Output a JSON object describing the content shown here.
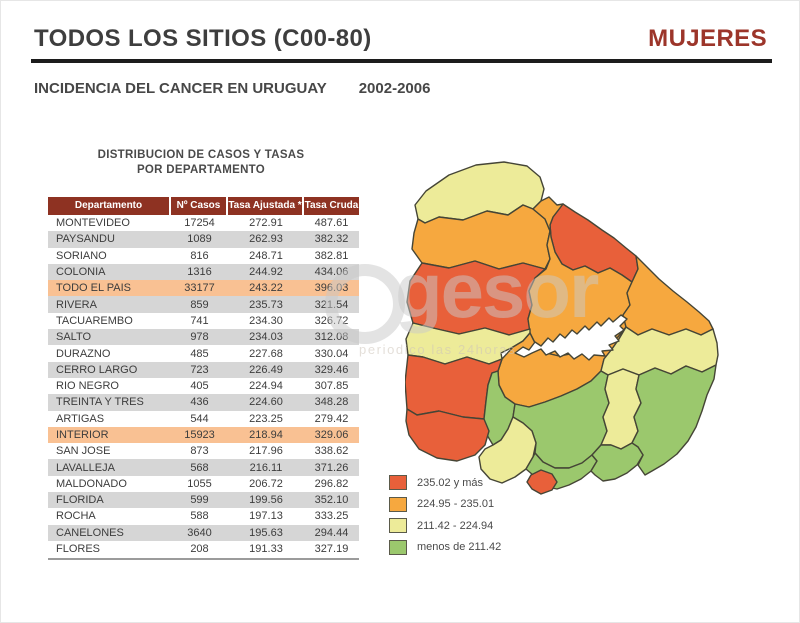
{
  "header": {
    "title": "TODOS LOS SITIOS (C00-80)",
    "sex_label": "MUJERES",
    "subtitle": "INCIDENCIA DEL CANCER EN URUGUAY",
    "period": "2002-2006"
  },
  "table": {
    "title_line1": "DISTRIBUCION DE CASOS Y TASAS",
    "title_line2": "POR DEPARTAMENTO",
    "columns": [
      "Departamento",
      "Nº Casos",
      "Tasa Ajustada *",
      "Tasa Cruda"
    ],
    "rows": [
      {
        "departamento": "MONTEVIDEO",
        "casos": "17254",
        "tasa_ajustada": "272.91",
        "tasa_cruda": "487.61",
        "highlight": false
      },
      {
        "departamento": "PAYSANDU",
        "casos": "1089",
        "tasa_ajustada": "262.93",
        "tasa_cruda": "382.32",
        "highlight": false
      },
      {
        "departamento": "SORIANO",
        "casos": "816",
        "tasa_ajustada": "248.71",
        "tasa_cruda": "382.81",
        "highlight": false
      },
      {
        "departamento": "COLONIA",
        "casos": "1316",
        "tasa_ajustada": "244.92",
        "tasa_cruda": "434.06",
        "highlight": false
      },
      {
        "departamento": "TODO EL PAIS",
        "casos": "33177",
        "tasa_ajustada": "243.22",
        "tasa_cruda": "396.03",
        "highlight": true
      },
      {
        "departamento": "RIVERA",
        "casos": "859",
        "tasa_ajustada": "235.73",
        "tasa_cruda": "321.54",
        "highlight": false
      },
      {
        "departamento": "TACUAREMBO",
        "casos": "741",
        "tasa_ajustada": "234.30",
        "tasa_cruda": "326.72",
        "highlight": false
      },
      {
        "departamento": "SALTO",
        "casos": "978",
        "tasa_ajustada": "234.03",
        "tasa_cruda": "312.08",
        "highlight": false
      },
      {
        "departamento": "DURAZNO",
        "casos": "485",
        "tasa_ajustada": "227.68",
        "tasa_cruda": "330.04",
        "highlight": false
      },
      {
        "departamento": "CERRO LARGO",
        "casos": "723",
        "tasa_ajustada": "226.49",
        "tasa_cruda": "329.46",
        "highlight": false
      },
      {
        "departamento": "RIO NEGRO",
        "casos": "405",
        "tasa_ajustada": "224.94",
        "tasa_cruda": "307.85",
        "highlight": false
      },
      {
        "departamento": "TREINTA Y TRES",
        "casos": "436",
        "tasa_ajustada": "224.60",
        "tasa_cruda": "348.28",
        "highlight": false
      },
      {
        "departamento": "ARTIGAS",
        "casos": "544",
        "tasa_ajustada": "223.25",
        "tasa_cruda": "279.42",
        "highlight": false
      },
      {
        "departamento": "INTERIOR",
        "casos": "15923",
        "tasa_ajustada": "218.94",
        "tasa_cruda": "329.06",
        "highlight": true
      },
      {
        "departamento": "SAN JOSE",
        "casos": "873",
        "tasa_ajustada": "217.96",
        "tasa_cruda": "338.62",
        "highlight": false
      },
      {
        "departamento": "LAVALLEJA",
        "casos": "568",
        "tasa_ajustada": "216.11",
        "tasa_cruda": "371.26",
        "highlight": false
      },
      {
        "departamento": "MALDONADO",
        "casos": "1055",
        "tasa_ajustada": "206.72",
        "tasa_cruda": "296.82",
        "highlight": false
      },
      {
        "departamento": "FLORIDA",
        "casos": "599",
        "tasa_ajustada": "199.56",
        "tasa_cruda": "352.10",
        "highlight": false
      },
      {
        "departamento": "ROCHA",
        "casos": "588",
        "tasa_ajustada": "197.13",
        "tasa_cruda": "333.25",
        "highlight": false
      },
      {
        "departamento": "CANELONES",
        "casos": "3640",
        "tasa_ajustada": "195.63",
        "tasa_cruda": "294.44",
        "highlight": false
      },
      {
        "departamento": "FLORES",
        "casos": "208",
        "tasa_ajustada": "191.33",
        "tasa_cruda": "327.19",
        "highlight": false
      }
    ]
  },
  "legend": {
    "items": [
      {
        "label": "235.02 y más",
        "color": "#E8603A"
      },
      {
        "label": "224.95 - 235.01",
        "color": "#F6A83F"
      },
      {
        "label": "211.42 - 224.94",
        "color": "#EDEB99"
      },
      {
        "label": "menos de 211.42",
        "color": "#9BC86D"
      }
    ]
  },
  "map": {
    "departments": [
      {
        "id": "artigas",
        "label": "ARTIGAS",
        "category": 2
      },
      {
        "id": "salto",
        "label": "SALTO",
        "category": 1
      },
      {
        "id": "rivera",
        "label": "RIVERA",
        "category": 0
      },
      {
        "id": "paysandu",
        "label": "PAYSANDU",
        "category": 0
      },
      {
        "id": "tacuarembo",
        "label": "TACUAREMBO",
        "category": 1
      },
      {
        "id": "cerro-largo",
        "label": "CERRO LARGO",
        "category": 1
      },
      {
        "id": "rio-negro",
        "label": "RIO NEGRO",
        "category": 2
      },
      {
        "id": "durazno",
        "label": "DURAZNO",
        "category": 1
      },
      {
        "id": "treinta-y-tres",
        "label": "TREINTA Y TRES",
        "category": 2
      },
      {
        "id": "soriano",
        "label": "SORIANO",
        "category": 0
      },
      {
        "id": "flores",
        "label": "FLORES",
        "category": 3
      },
      {
        "id": "florida",
        "label": "FLORIDA",
        "category": 3
      },
      {
        "id": "colonia",
        "label": "COLONIA",
        "category": 0
      },
      {
        "id": "san-jose",
        "label": "SAN JOSE",
        "category": 2
      },
      {
        "id": "lavalleja",
        "label": "LAVALLEJA",
        "category": 2
      },
      {
        "id": "rocha",
        "label": "ROCHA",
        "category": 3
      },
      {
        "id": "canelones",
        "label": "CANELONES",
        "category": 3
      },
      {
        "id": "maldonado",
        "label": "MALDONADO",
        "category": 3
      },
      {
        "id": "montevideo",
        "label": "MONTEVIDEO",
        "category": 0
      }
    ]
  },
  "watermark": {
    "text": "gesor",
    "subtext": "periodico las 24horas"
  },
  "colors": {
    "header_bg": "#8E3222",
    "row_gray": "#D6D6D6",
    "row_highlight": "#F9C193",
    "title_text": "#3E3E3E",
    "sex_label_text": "#9C352A",
    "map_border": "#454536"
  },
  "chart_data": [
    {
      "type": "table",
      "title": "DISTRIBUCION DE CASOS Y TASAS POR DEPARTAMENTO",
      "columns": [
        "Departamento",
        "Nº Casos",
        "Tasa Ajustada *",
        "Tasa Cruda"
      ],
      "rows": [
        [
          "MONTEVIDEO",
          17254,
          272.91,
          487.61
        ],
        [
          "PAYSANDU",
          1089,
          262.93,
          382.32
        ],
        [
          "SORIANO",
          816,
          248.71,
          382.81
        ],
        [
          "COLONIA",
          1316,
          244.92,
          434.06
        ],
        [
          "TODO EL PAIS",
          33177,
          243.22,
          396.03
        ],
        [
          "RIVERA",
          859,
          235.73,
          321.54
        ],
        [
          "TACUAREMBO",
          741,
          234.3,
          326.72
        ],
        [
          "SALTO",
          978,
          234.03,
          312.08
        ],
        [
          "DURAZNO",
          485,
          227.68,
          330.04
        ],
        [
          "CERRO LARGO",
          723,
          226.49,
          329.46
        ],
        [
          "RIO NEGRO",
          405,
          224.94,
          307.85
        ],
        [
          "TREINTA Y TRES",
          436,
          224.6,
          348.28
        ],
        [
          "ARTIGAS",
          544,
          223.25,
          279.42
        ],
        [
          "INTERIOR",
          15923,
          218.94,
          329.06
        ],
        [
          "SAN JOSE",
          873,
          217.96,
          338.62
        ],
        [
          "LAVALLEJA",
          568,
          216.11,
          371.26
        ],
        [
          "MALDONADO",
          1055,
          206.72,
          296.82
        ],
        [
          "FLORIDA",
          599,
          199.56,
          352.1
        ],
        [
          "ROCHA",
          588,
          197.13,
          333.25
        ],
        [
          "CANELONES",
          3640,
          195.63,
          294.44
        ],
        [
          "FLORES",
          208,
          191.33,
          327.19
        ]
      ]
    },
    {
      "type": "heatmap",
      "subtype": "choropleth",
      "region": "Uruguay por departamento",
      "variable": "Tasa Ajustada",
      "bins": [
        "235.02 y más",
        "224.95 - 235.01",
        "211.42 - 224.94",
        "menos de 211.42"
      ],
      "bin_colors": [
        "#E8603A",
        "#F6A83F",
        "#EDEB99",
        "#9BC86D"
      ],
      "department_bins": {
        "ARTIGAS": "211.42 - 224.94",
        "SALTO": "224.95 - 235.01",
        "RIVERA": "235.02 y más",
        "PAYSANDU": "235.02 y más",
        "TACUAREMBO": "224.95 - 235.01",
        "CERRO LARGO": "224.95 - 235.01",
        "RIO NEGRO": "211.42 - 224.94",
        "DURAZNO": "224.95 - 235.01",
        "TREINTA Y TRES": "211.42 - 224.94",
        "SORIANO": "235.02 y más",
        "FLORES": "menos de 211.42",
        "FLORIDA": "menos de 211.42",
        "COLONIA": "235.02 y más",
        "SAN JOSE": "211.42 - 224.94",
        "LAVALLEJA": "211.42 - 224.94",
        "ROCHA": "menos de 211.42",
        "CANELONES": "menos de 211.42",
        "MALDONADO": "menos de 211.42",
        "MONTEVIDEO": "235.02 y más"
      }
    }
  ]
}
